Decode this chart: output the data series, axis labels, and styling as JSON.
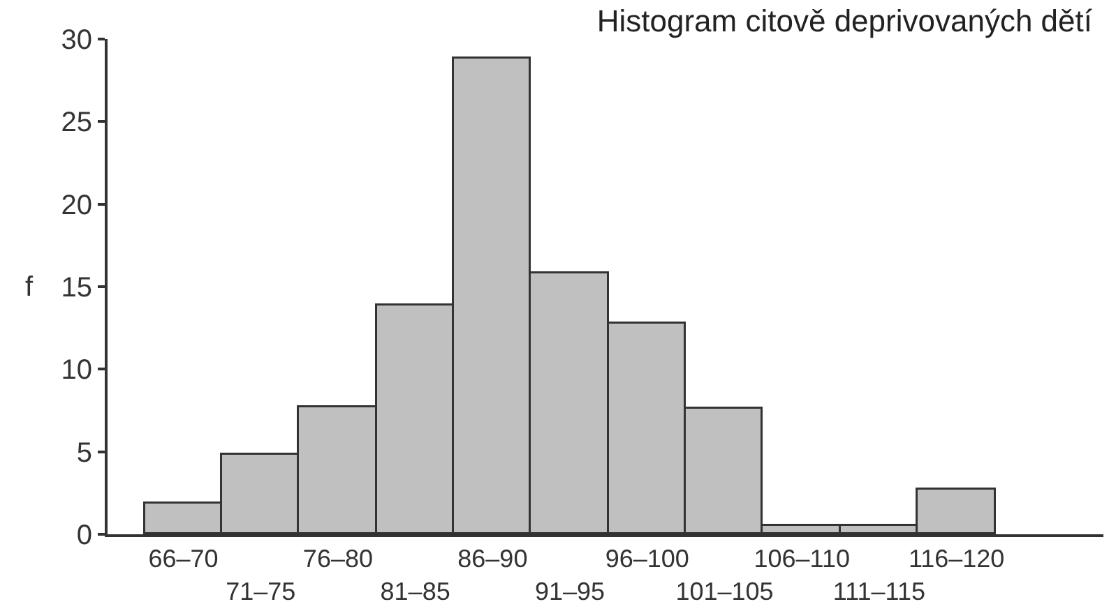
{
  "chart_data": {
    "type": "bar",
    "title": "Histogram citově deprivovaných dětí",
    "ylabel": "f",
    "categories": [
      "66–70",
      "71–75",
      "76–80",
      "81–85",
      "86–90",
      "91–95",
      "96–100",
      "101–105",
      "106–110",
      "111–115",
      "116–120"
    ],
    "values": [
      1.9,
      4.8,
      7.7,
      13.9,
      28.8,
      15.8,
      12.8,
      7.6,
      0.5,
      0.5,
      2.7
    ],
    "color": "#c0c0c0",
    "ylim": [
      0,
      30
    ],
    "yticks": [
      0,
      5,
      10,
      15,
      20,
      25,
      30
    ]
  }
}
